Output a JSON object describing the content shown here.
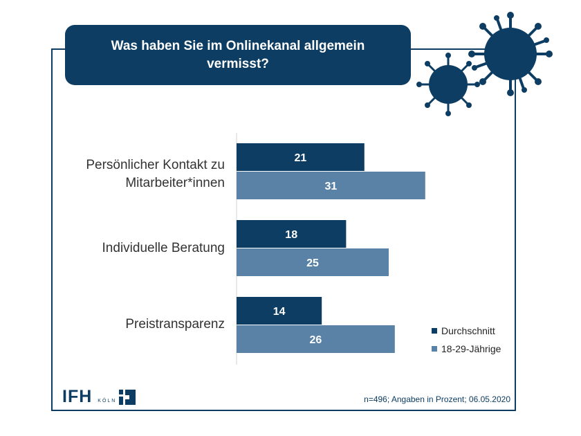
{
  "title": "Was haben Sie im Onlinekanal allgemein vermisst?",
  "chart_data": {
    "type": "bar",
    "orientation": "horizontal",
    "categories": [
      "Persönlicher Kontakt zu Mitarbeiter*innen",
      "Individuelle Beratung",
      "Preistransparenz"
    ],
    "series": [
      {
        "name": "Durchschnitt",
        "values": [
          21,
          18,
          14
        ],
        "color": "#0d3d63"
      },
      {
        "name": "18-29-Jährige",
        "values": [
          31,
          25,
          26
        ],
        "color": "#5a82a6"
      }
    ],
    "xlim": [
      0,
      40
    ],
    "grid": false,
    "legend_position": "bottom-right"
  },
  "footer": {
    "note": "n=496; Angaben in Prozent; 06.05.2020",
    "logo_text": "IFH",
    "logo_sub": "KÖLN"
  },
  "icons": [
    "virus-icon"
  ]
}
